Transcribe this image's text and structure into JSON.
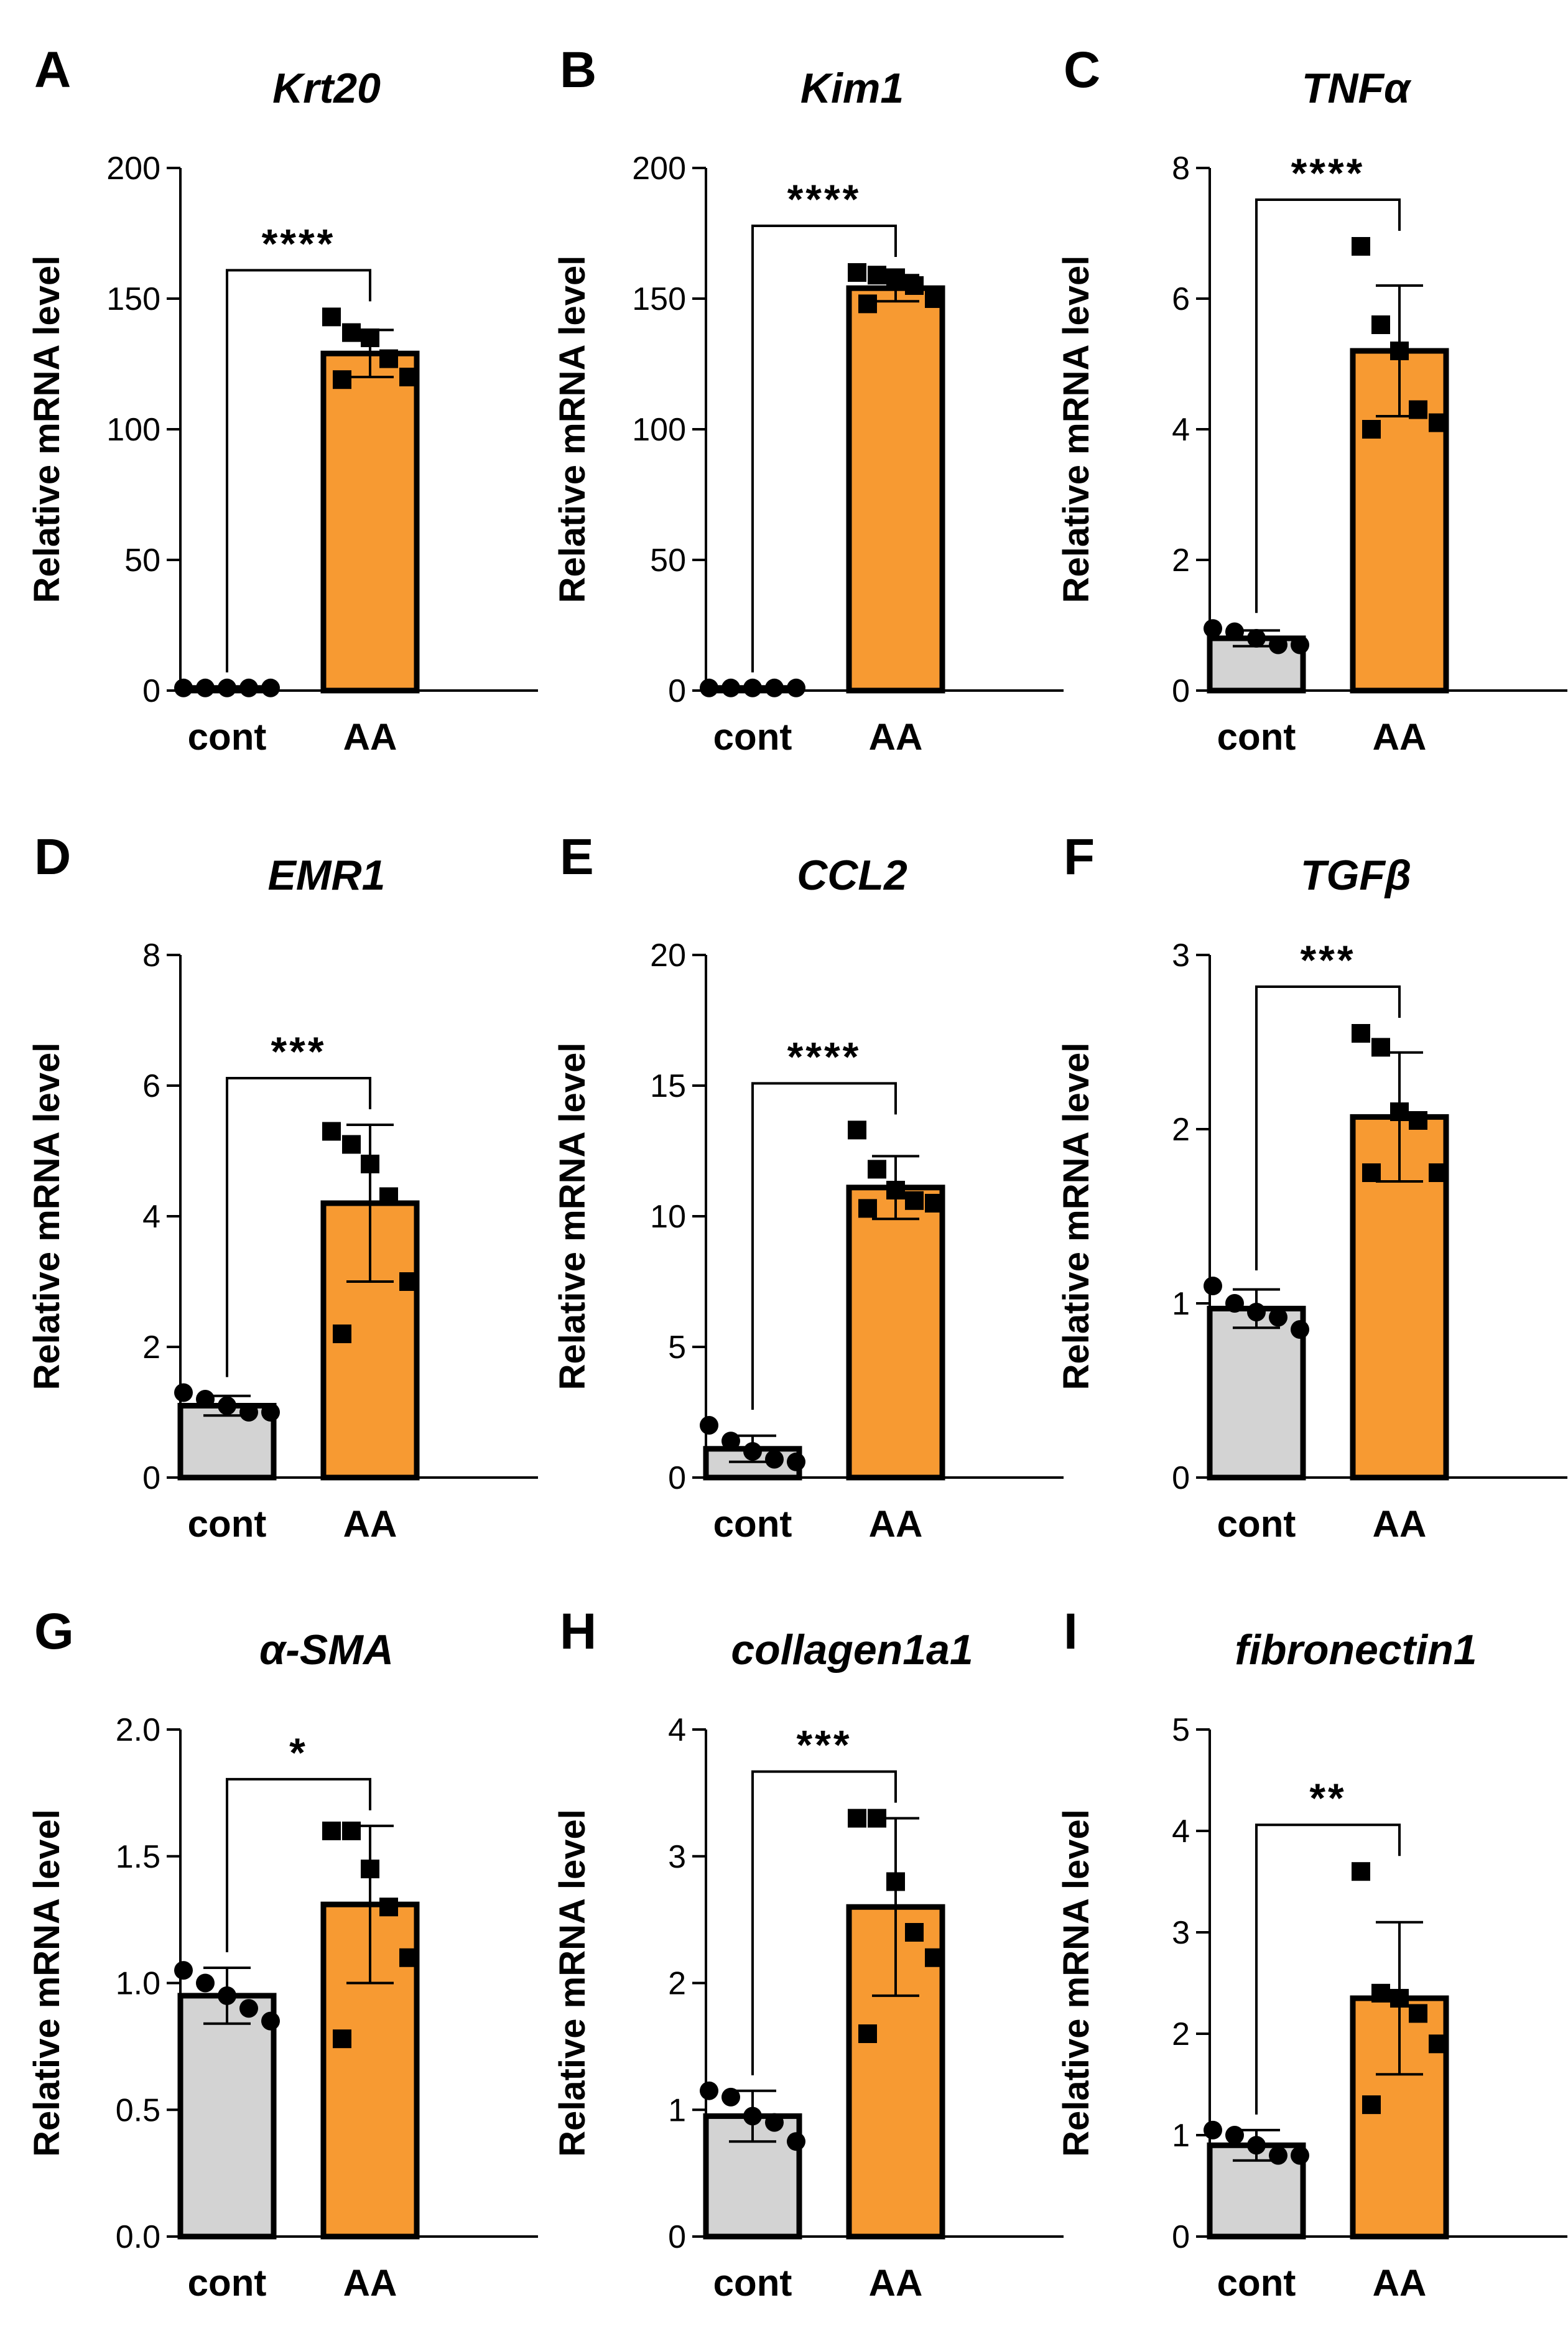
{
  "figure": {
    "ylabel": "Relative mRNA level",
    "categories": [
      "cont",
      "AA"
    ],
    "colors": {
      "cont": "#d3d3d3",
      "AA": "#f79a32",
      "outline": "#000000",
      "points": "#000000"
    }
  },
  "chart_data": [
    {
      "panel": "A",
      "title": "Krt20",
      "type": "bar",
      "categories": [
        "cont",
        "AA"
      ],
      "ylim": [
        0,
        200
      ],
      "ticks": [
        "0",
        "50",
        "100",
        "150",
        "200"
      ],
      "series": [
        {
          "name": "cont",
          "mean": 1,
          "sd": 0,
          "points": [
            1,
            1,
            1,
            1,
            1
          ]
        },
        {
          "name": "AA",
          "mean": 129,
          "sd": 9,
          "points": [
            143,
            137,
            135,
            127,
            120,
            119
          ]
        }
      ],
      "significance": "****"
    },
    {
      "panel": "B",
      "title": "Kim1",
      "type": "bar",
      "categories": [
        "cont",
        "AA"
      ],
      "ylim": [
        0,
        200
      ],
      "ticks": [
        "0",
        "50",
        "100",
        "150",
        "200"
      ],
      "series": [
        {
          "name": "cont",
          "mean": 1,
          "sd": 0,
          "points": [
            1,
            1,
            1,
            1,
            1
          ]
        },
        {
          "name": "AA",
          "mean": 154,
          "sd": 5,
          "points": [
            160,
            159,
            158,
            155,
            150,
            148
          ]
        }
      ],
      "significance": "****"
    },
    {
      "panel": "C",
      "title": "TNFα",
      "type": "bar",
      "categories": [
        "cont",
        "AA"
      ],
      "ylim": [
        0,
        8
      ],
      "ticks": [
        "0",
        "2",
        "4",
        "6",
        "8"
      ],
      "series": [
        {
          "name": "cont",
          "mean": 0.8,
          "sd": 0.12,
          "points": [
            0.95,
            0.9,
            0.8,
            0.7,
            0.7
          ]
        },
        {
          "name": "AA",
          "mean": 5.2,
          "sd": 1.0,
          "points": [
            6.8,
            5.6,
            5.2,
            4.3,
            4.1,
            4.0
          ]
        }
      ],
      "significance": "****"
    },
    {
      "panel": "D",
      "title": "EMR1",
      "type": "bar",
      "categories": [
        "cont",
        "AA"
      ],
      "ylim": [
        0,
        8
      ],
      "ticks": [
        "0",
        "2",
        "4",
        "6",
        "8"
      ],
      "series": [
        {
          "name": "cont",
          "mean": 1.1,
          "sd": 0.15,
          "points": [
            1.3,
            1.2,
            1.1,
            1.0,
            1.0
          ]
        },
        {
          "name": "AA",
          "mean": 4.2,
          "sd": 1.2,
          "points": [
            5.3,
            5.1,
            4.8,
            4.3,
            3.0,
            2.2
          ]
        }
      ],
      "significance": "***"
    },
    {
      "panel": "E",
      "title": "CCL2",
      "type": "bar",
      "categories": [
        "cont",
        "AA"
      ],
      "ylim": [
        0,
        20
      ],
      "ticks": [
        "0",
        "5",
        "10",
        "15",
        "20"
      ],
      "series": [
        {
          "name": "cont",
          "mean": 1.1,
          "sd": 0.5,
          "points": [
            2.0,
            1.4,
            1.0,
            0.7,
            0.6
          ]
        },
        {
          "name": "AA",
          "mean": 11.1,
          "sd": 1.2,
          "points": [
            13.3,
            11.8,
            11.0,
            10.6,
            10.5,
            10.3
          ]
        }
      ],
      "significance": "****"
    },
    {
      "panel": "F",
      "title": "TGFβ",
      "type": "bar",
      "categories": [
        "cont",
        "AA"
      ],
      "ylim": [
        0,
        3
      ],
      "ticks": [
        "0",
        "1",
        "2",
        "3"
      ],
      "series": [
        {
          "name": "cont",
          "mean": 0.97,
          "sd": 0.11,
          "points": [
            1.1,
            1.0,
            0.95,
            0.92,
            0.85
          ]
        },
        {
          "name": "AA",
          "mean": 2.07,
          "sd": 0.37,
          "points": [
            2.55,
            2.47,
            2.1,
            2.05,
            1.75,
            1.75
          ]
        }
      ],
      "significance": "***"
    },
    {
      "panel": "G",
      "title": "α-SMA",
      "type": "bar",
      "categories": [
        "cont",
        "AA"
      ],
      "ylim": [
        0,
        2.0
      ],
      "ticks": [
        "0.0",
        "0.5",
        "1.0",
        "1.5",
        "2.0"
      ],
      "series": [
        {
          "name": "cont",
          "mean": 0.95,
          "sd": 0.11,
          "points": [
            1.05,
            1.0,
            0.95,
            0.9,
            0.85
          ]
        },
        {
          "name": "AA",
          "mean": 1.31,
          "sd": 0.31,
          "points": [
            1.6,
            1.6,
            1.45,
            1.3,
            1.1,
            0.78
          ]
        }
      ],
      "significance": "*"
    },
    {
      "panel": "H",
      "title": "collagen1a1",
      "type": "bar",
      "categories": [
        "cont",
        "AA"
      ],
      "ylim": [
        0,
        4
      ],
      "ticks": [
        "0",
        "1",
        "2",
        "3",
        "4"
      ],
      "series": [
        {
          "name": "cont",
          "mean": 0.95,
          "sd": 0.2,
          "points": [
            1.15,
            1.1,
            0.95,
            0.9,
            0.75
          ]
        },
        {
          "name": "AA",
          "mean": 2.6,
          "sd": 0.7,
          "points": [
            3.3,
            3.3,
            2.8,
            2.4,
            2.2,
            1.6
          ]
        }
      ],
      "significance": "***"
    },
    {
      "panel": "I",
      "title": "fibronectin1",
      "type": "bar",
      "categories": [
        "cont",
        "AA"
      ],
      "ylim": [
        0,
        5
      ],
      "ticks": [
        "0",
        "1",
        "2",
        "3",
        "4",
        "5"
      ],
      "series": [
        {
          "name": "cont",
          "mean": 0.9,
          "sd": 0.15,
          "points": [
            1.05,
            1.0,
            0.9,
            0.8,
            0.8
          ]
        },
        {
          "name": "AA",
          "mean": 2.35,
          "sd": 0.75,
          "points": [
            3.6,
            2.4,
            2.35,
            2.2,
            1.9,
            1.3
          ]
        }
      ],
      "significance": "**"
    }
  ]
}
